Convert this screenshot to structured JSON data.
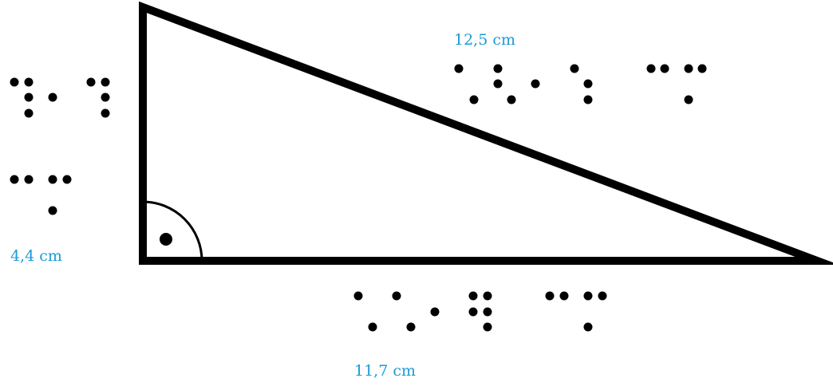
{
  "labels": {
    "hypotenuse": "12,5 cm",
    "leg_vertical": "4,4 cm",
    "leg_horizontal": "11,7 cm"
  },
  "braille": {
    "hypotenuse": "12,5 cm",
    "leg_vertical": "4,4 cm",
    "leg_horizontal": "11,7 cm"
  },
  "colors": {
    "label": "#1a9ad6",
    "figure": "#000000"
  },
  "right_angle_marker": "quarter-circle-with-dot"
}
